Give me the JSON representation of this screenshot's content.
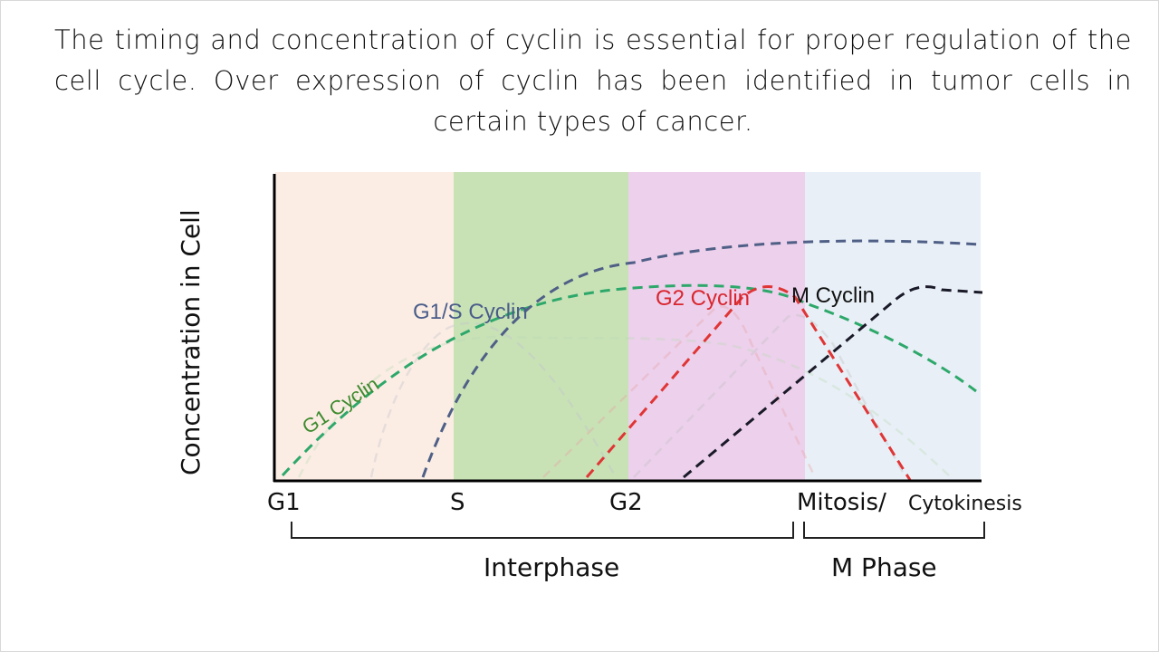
{
  "caption": "The timing and concentration of cyclin is essential for proper regulation of the cell cycle. Over expression of cyclin has been identified in tumor cells in certain types of cancer.",
  "diagram": {
    "y_axis_label": "Concentration in Cell",
    "phases": [
      "G1",
      "S",
      "G2",
      "Mitosis/",
      "Cytokinesis"
    ],
    "groups": [
      "Interphase",
      "M Phase"
    ],
    "curves": [
      {
        "label": "G1 Cyclin",
        "color": "#3e8a2e"
      },
      {
        "label": "G1/S Cyclin",
        "color": "#4a5d8a"
      },
      {
        "label": "G2 Cyclin",
        "color": "#d9262e"
      },
      {
        "label": "M Cyclin",
        "color": "#111111"
      }
    ],
    "region_colors": {
      "G1": "#fbede4",
      "S": "#c8e2b6",
      "G2": "#ecd0ec",
      "M": "#e8eff7"
    }
  }
}
